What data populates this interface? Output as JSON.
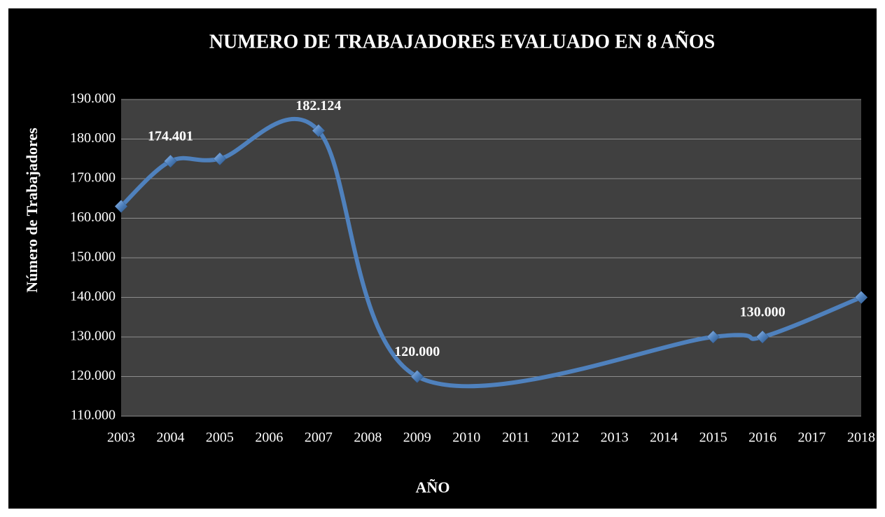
{
  "chart_data": {
    "type": "line",
    "title": "NUMERO DE TRABAJADORES EVALUADO EN 8 AÑOS",
    "x_label": "AÑO",
    "y_label": "Número de Trabajadores",
    "x": [
      2003,
      2004,
      2005,
      2007,
      2009,
      2015,
      2016,
      2018
    ],
    "values": [
      163000,
      174401,
      175000,
      182124,
      120000,
      130000,
      130000,
      140000
    ],
    "value_labels": [
      null,
      "174.401",
      null,
      "182.124",
      "120.000",
      null,
      "130.000",
      null
    ],
    "color": "#4f81bd",
    "smooth": true,
    "xlim": [
      2003,
      2018
    ],
    "xticks": [
      2003,
      2004,
      2005,
      2006,
      2007,
      2008,
      2009,
      2010,
      2011,
      2012,
      2013,
      2014,
      2015,
      2016,
      2017,
      2018
    ],
    "ylim": [
      110000,
      190000
    ],
    "yticks": [
      {
        "value": 110000,
        "label": "110.000"
      },
      {
        "value": 120000,
        "label": "120.000"
      },
      {
        "value": 130000,
        "label": "130.000"
      },
      {
        "value": 140000,
        "label": "140.000"
      },
      {
        "value": 150000,
        "label": "150.000"
      },
      {
        "value": 160000,
        "label": "160.000"
      },
      {
        "value": 170000,
        "label": "170.000"
      },
      {
        "value": 180000,
        "label": "180.000"
      },
      {
        "value": 190000,
        "label": "190.000"
      }
    ],
    "grid": true
  }
}
